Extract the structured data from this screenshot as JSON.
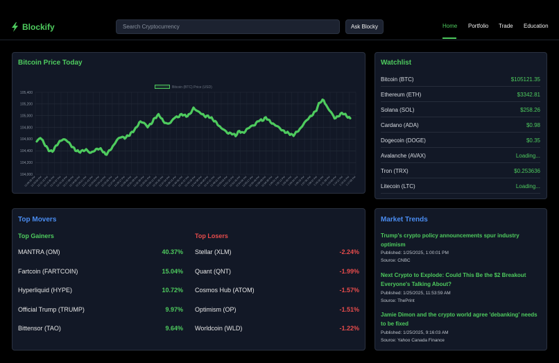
{
  "header": {
    "brand": "Blockify",
    "search_placeholder": "Search Cryptocurrency",
    "ask_label": "Ask Blocky",
    "nav": [
      "Home",
      "Portfolio",
      "Trade",
      "Education"
    ]
  },
  "price_panel": {
    "title": "Bitcoin Price Today"
  },
  "chart_data": {
    "type": "line",
    "title": "Bitcoin Price Today",
    "legend": "Bitcoin (BTC) Price (USD)",
    "ylim": [
      104000,
      105400
    ],
    "yticks": [
      "105,400",
      "105,200",
      "105,000",
      "104,800",
      "104,600",
      "104,400",
      "104,200",
      "104,000"
    ],
    "xticks": [
      "12:09:33 PM",
      "12:10:54 PM",
      "12:12:15 PM",
      "12:13:36 PM",
      "12:14:57 PM",
      "12:16:18 PM",
      "12:17:39 PM",
      "12:19:00 PM",
      "12:20:21 PM",
      "12:21:42 PM",
      "12:23:03 PM",
      "12:24:24 PM",
      "12:25:45 PM",
      "12:27:06 PM",
      "12:28:27 PM",
      "12:29:48 PM",
      "12:31:09 PM",
      "12:32:30 PM",
      "12:33:51 PM",
      "12:35:12 PM",
      "12:36:33 PM",
      "12:37:54 PM",
      "12:39:15 PM",
      "12:40:36 PM",
      "12:41:57 PM",
      "12:43:18 PM",
      "12:44:39 PM",
      "12:46:00 PM",
      "12:47:21 PM",
      "12:48:42 PM",
      "12:50:03 PM",
      "12:51:24 PM",
      "12:52:45 PM",
      "12:54:06 PM",
      "12:55:27 PM",
      "12:56:48 PM",
      "12:58:09 PM",
      "12:59:30 PM",
      "1:00:51 PM",
      "1:02:12 PM",
      "1:03:33 PM",
      "1:04:54 PM",
      "1:06:15 PM",
      "1:07:36 PM",
      "1:08:57 PM",
      "1:10:18 PM",
      "1:11:39 PM",
      "1:13:00 PM",
      "1:14:21 PM",
      "1:15:42 PM",
      "1:17:03 PM"
    ],
    "series": [
      {
        "name": "Bitcoin (BTC) Price (USD)",
        "values": [
          104560,
          104630,
          104520,
          104420,
          104380,
          104480,
          104560,
          104600,
          104570,
          104490,
          104420,
          104380,
          104400,
          104420,
          104360,
          104400,
          104440,
          104420,
          104330,
          104400,
          104480,
          104590,
          104640,
          104620,
          104660,
          104720,
          104790,
          104900,
          104880,
          104810,
          104870,
          104970,
          105020,
          104910,
          104860,
          104880,
          104970,
          104980,
          105030,
          104990,
          105020,
          105130,
          105080,
          105040,
          104990,
          104990,
          104940,
          104880,
          104800,
          104760,
          104700,
          104700,
          104660,
          104740,
          104700,
          104770,
          104820,
          104840,
          104920,
          104920,
          104970,
          104900,
          104850,
          104820,
          104760,
          104720,
          104700,
          104660,
          104720,
          104780,
          104880,
          104950,
          105010,
          105080,
          105230,
          105270,
          105140,
          105060,
          104950,
          105000,
          105050,
          105000,
          104950
        ]
      }
    ]
  },
  "watchlist": {
    "title": "Watchlist",
    "items": [
      {
        "name": "Bitcoin (BTC)",
        "price": "$105121.35"
      },
      {
        "name": "Ethereum (ETH)",
        "price": "$3342.81"
      },
      {
        "name": "Solana (SOL)",
        "price": "$258.26"
      },
      {
        "name": "Cardano (ADA)",
        "price": "$0.98"
      },
      {
        "name": "Dogecoin (DOGE)",
        "price": "$0.35"
      },
      {
        "name": "Avalanche (AVAX)",
        "price": "Loading..."
      },
      {
        "name": "Tron (TRX)",
        "price": "$0.253636"
      },
      {
        "name": "Litecoin (LTC)",
        "price": "Loading..."
      }
    ]
  },
  "movers": {
    "title": "Top Movers",
    "gainers_title": "Top Gainers",
    "losers_title": "Top Losers",
    "gainers": [
      {
        "name": "MANTRA (OM)",
        "pct": "40.37%"
      },
      {
        "name": "Fartcoin (FARTCOIN)",
        "pct": "15.04%"
      },
      {
        "name": "Hyperliquid (HYPE)",
        "pct": "10.72%"
      },
      {
        "name": "Official Trump (TRUMP)",
        "pct": "9.97%"
      },
      {
        "name": "Bittensor (TAO)",
        "pct": "9.64%"
      }
    ],
    "losers": [
      {
        "name": "Stellar (XLM)",
        "pct": "-2.24%"
      },
      {
        "name": "Quant (QNT)",
        "pct": "-1.99%"
      },
      {
        "name": "Cosmos Hub (ATOM)",
        "pct": "-1.57%"
      },
      {
        "name": "Optimism (OP)",
        "pct": "-1.51%"
      },
      {
        "name": "Worldcoin (WLD)",
        "pct": "-1.22%"
      }
    ]
  },
  "trends": {
    "title": "Market Trends",
    "items": [
      {
        "headline": "Trump's crypto policy announcements spur industry optimism",
        "published": "Published: 1/25/2025, 1:00:01 PM",
        "source": "Source: CNBC"
      },
      {
        "headline": "Next Crypto to Explode: Could This Be the $2 Breakout Everyone's Talking About?",
        "published": "Published: 1/25/2025, 11:53:59 AM",
        "source": "Source: ThePrint"
      },
      {
        "headline": "Jamie Dimon and the crypto world agree 'debanking' needs to be fixed",
        "published": "Published: 1/25/2025, 9:16:03 AM",
        "source": "Source: Yahoo Canada Finance"
      }
    ]
  },
  "colors": {
    "accent": "#4ecb5e",
    "blue": "#4a8cf0",
    "red": "#e84c4c",
    "panel": "#121826"
  }
}
